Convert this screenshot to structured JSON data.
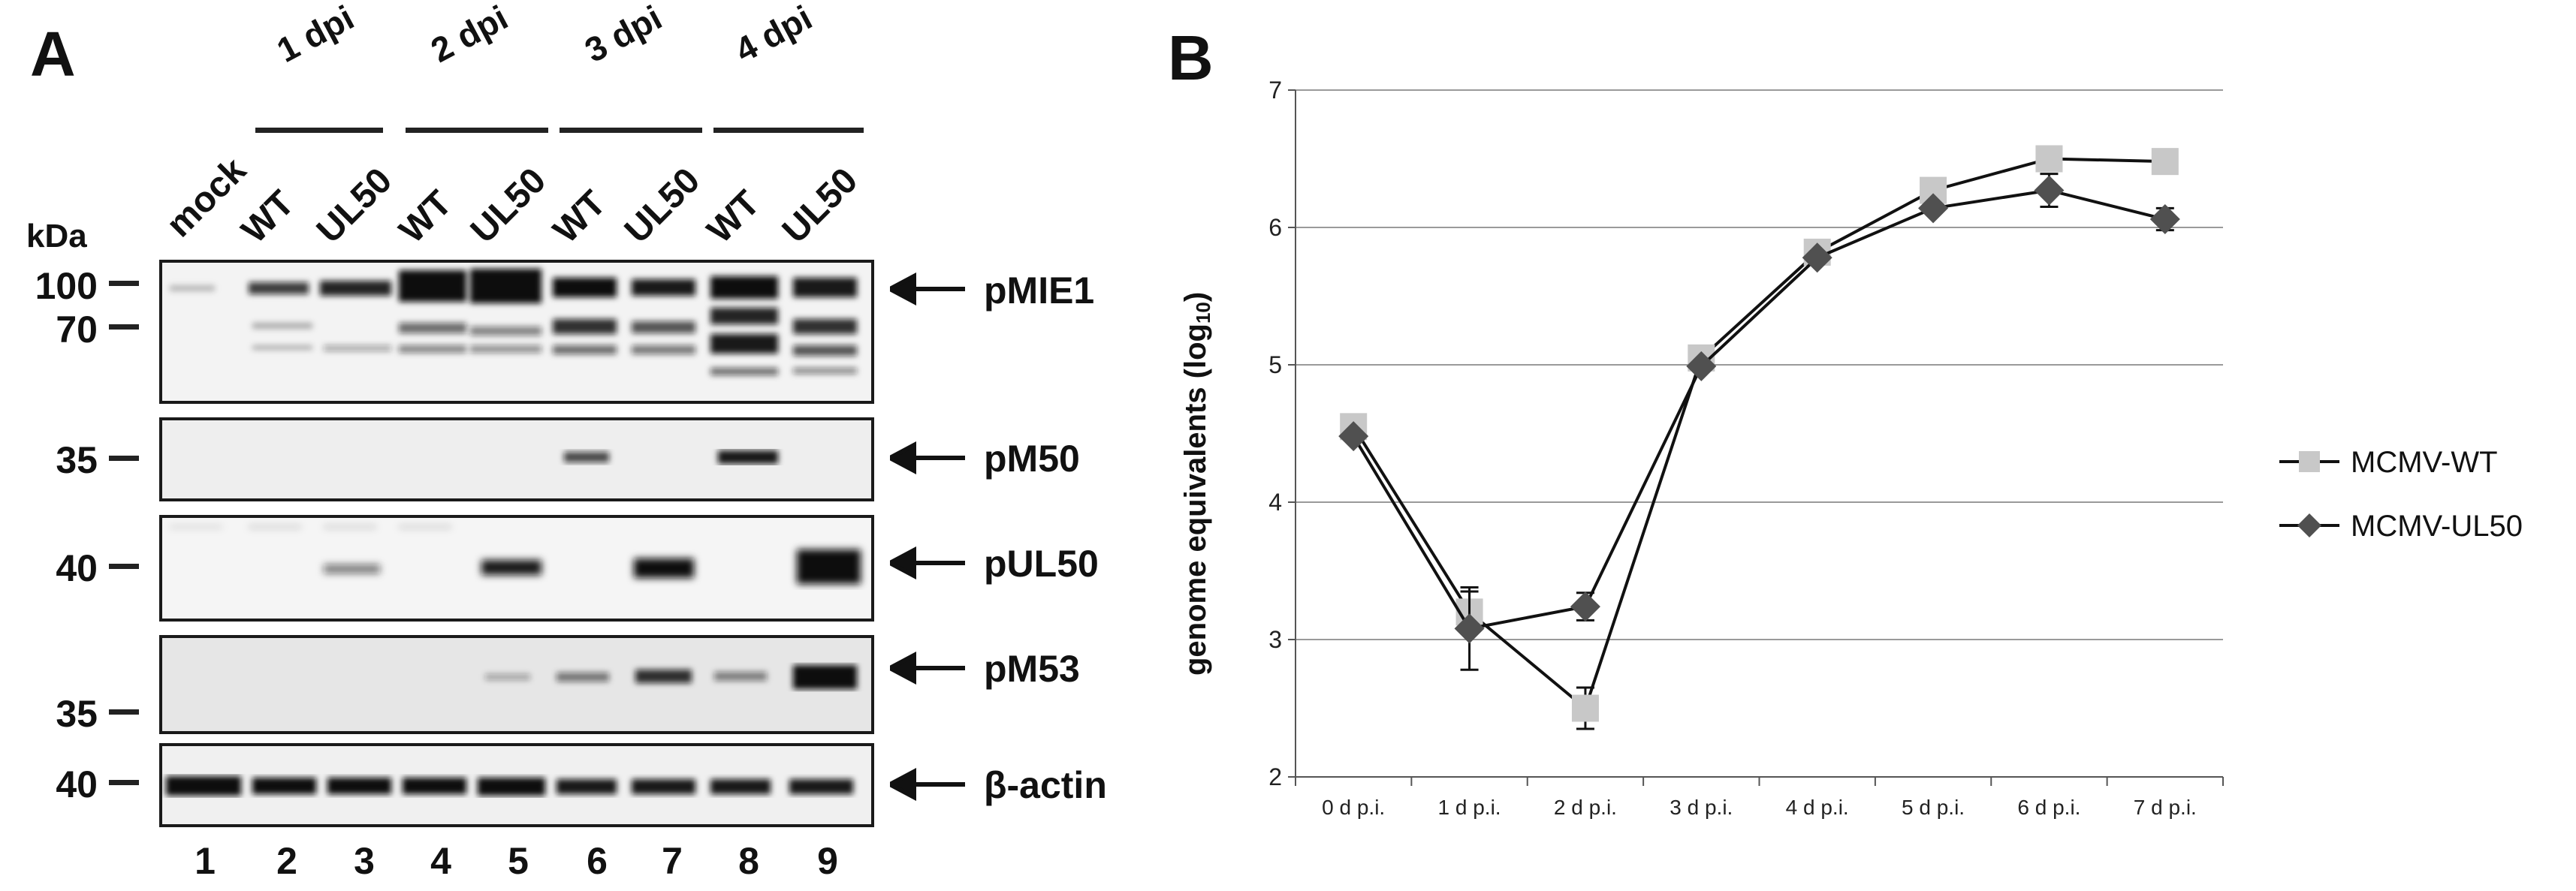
{
  "panel_a": {
    "letter": "A",
    "dpi_groups": [
      "1 dpi",
      "2 dpi",
      "3 dpi",
      "4 dpi"
    ],
    "lane_labels": [
      "mock",
      "WT",
      "UL50",
      "WT",
      "UL50",
      "WT",
      "UL50",
      "WT",
      "UL50"
    ],
    "kda_label": "kDa",
    "markers": [
      "100",
      "70",
      "35",
      "40",
      "35",
      "40"
    ],
    "band_labels": [
      "pMIE1",
      "pM50",
      "pUL50",
      "pM53",
      "β-actin"
    ],
    "lane_numbers": [
      "1",
      "2",
      "3",
      "4",
      "5",
      "6",
      "7",
      "8",
      "9"
    ]
  },
  "panel_b": {
    "letter": "B",
    "chart_data": {
      "type": "line",
      "categories": [
        "0 d p.i.",
        "1 d p.i.",
        "2 d p.i.",
        "3 d p.i.",
        "4 d p.i.",
        "5 d p.i.",
        "6 d p.i.",
        "7 d p.i."
      ],
      "ylabel": "genome equivalents (log",
      "ylabel_sub": "10",
      "ylabel_close": ")",
      "ylim": [
        2,
        7
      ],
      "yticks": [
        "2",
        "3",
        "4",
        "5",
        "6",
        "7"
      ],
      "grid": true,
      "legend_position": "right",
      "series": [
        {
          "name": "MCMV-WT",
          "values": [
            4.55,
            3.2,
            2.5,
            5.05,
            5.82,
            6.27,
            6.5,
            6.48
          ],
          "errors": [
            0,
            0.15,
            0.15,
            0,
            0,
            0,
            0,
            0
          ],
          "color": "#c8c8c8",
          "marker": "square"
        },
        {
          "name": "MCMV-UL50",
          "values": [
            4.48,
            3.08,
            3.24,
            4.99,
            5.78,
            6.14,
            6.27,
            6.06
          ],
          "errors": [
            0,
            0.3,
            0.1,
            0,
            0,
            0,
            0.12,
            0.08
          ],
          "color": "#505050",
          "marker": "diamond"
        }
      ]
    }
  }
}
